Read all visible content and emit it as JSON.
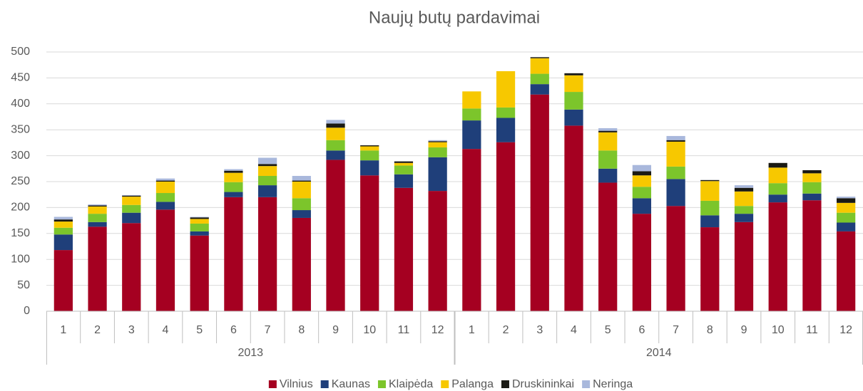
{
  "chart_data": {
    "type": "stacked_bar",
    "title": "Naujų butų pardavimai",
    "groups": [
      {
        "name": "2013",
        "categories": [
          "1",
          "2",
          "3",
          "4",
          "5",
          "6",
          "7",
          "8",
          "9",
          "10",
          "11",
          "12"
        ]
      },
      {
        "name": "2014",
        "categories": [
          "1",
          "2",
          "3",
          "4",
          "5",
          "6",
          "7",
          "8",
          "9",
          "10",
          "11",
          "12"
        ]
      }
    ],
    "series": [
      {
        "name": "Vilnius",
        "color": "#a50021",
        "values": [
          118,
          163,
          170,
          196,
          146,
          220,
          220,
          180,
          292,
          262,
          238,
          232,
          313,
          326,
          418,
          358,
          248,
          188,
          203,
          162,
          172,
          210,
          214,
          154
        ]
      },
      {
        "name": "Kaunas",
        "color": "#1f3f7a",
        "values": [
          30,
          9,
          20,
          15,
          8,
          10,
          23,
          15,
          18,
          29,
          26,
          65,
          55,
          47,
          20,
          31,
          27,
          30,
          52,
          23,
          16,
          15,
          13,
          17
        ]
      },
      {
        "name": "Klaipėda",
        "color": "#7cc52b",
        "values": [
          13,
          16,
          15,
          17,
          15,
          19,
          18,
          23,
          20,
          19,
          17,
          19,
          23,
          20,
          20,
          34,
          35,
          22,
          24,
          28,
          15,
          22,
          22,
          19
        ]
      },
      {
        "name": "Palanga",
        "color": "#f7c800",
        "values": [
          12,
          14,
          16,
          22,
          9,
          18,
          19,
          32,
          24,
          8,
          5,
          10,
          33,
          70,
          30,
          32,
          35,
          22,
          48,
          38,
          28,
          30,
          17,
          19
        ]
      },
      {
        "name": "Druskininkai",
        "color": "#1a1a14",
        "values": [
          4,
          2,
          2,
          2,
          3,
          4,
          4,
          2,
          8,
          2,
          3,
          2,
          0,
          0,
          2,
          4,
          3,
          8,
          3,
          2,
          7,
          9,
          6,
          9
        ]
      },
      {
        "name": "Neringa",
        "color": "#a9b8dc",
        "values": [
          5,
          2,
          1,
          4,
          1,
          3,
          12,
          9,
          7,
          0,
          0,
          2,
          0,
          0,
          0,
          0,
          5,
          12,
          8,
          0,
          5,
          0,
          0,
          3
        ]
      }
    ],
    "ylim": [
      0,
      500
    ],
    "yticks": [
      0,
      50,
      100,
      150,
      200,
      250,
      300,
      350,
      400,
      450,
      500
    ],
    "grid": true,
    "legend": "bottom"
  }
}
